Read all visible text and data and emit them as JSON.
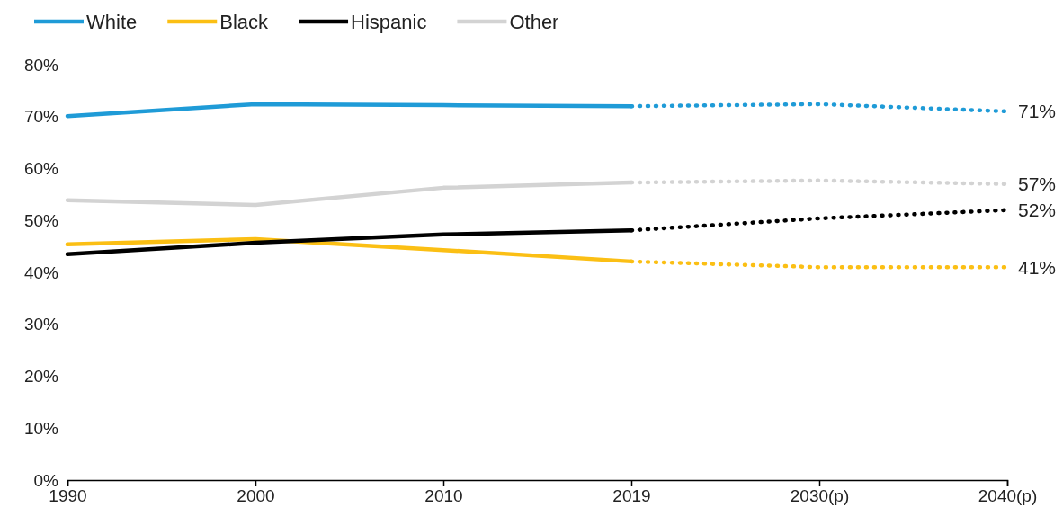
{
  "chart_data": {
    "type": "line",
    "categories": [
      "1990",
      "2000",
      "2010",
      "2019",
      "2030(p)",
      "2040(p)"
    ],
    "series": [
      {
        "name": "White",
        "color": "#1f9bd7",
        "line_style": "solid",
        "values": [
          70.1,
          72.4,
          72.2,
          72.0,
          null,
          null
        ]
      },
      {
        "name": "Black",
        "color": "#fbbf14",
        "line_style": "solid",
        "values": [
          45.4,
          46.4,
          44.3,
          42.1,
          null,
          null
        ]
      },
      {
        "name": "Hispanic",
        "color": "#000000",
        "line_style": "solid",
        "values": [
          43.5,
          45.7,
          47.3,
          48.1,
          null,
          null
        ]
      },
      {
        "name": "Other",
        "color": "#d3d3d3",
        "line_style": "solid",
        "values": [
          53.9,
          53.0,
          56.3,
          57.3,
          null,
          null
        ]
      },
      {
        "color": "#1f9bd7",
        "line_style": "dotted",
        "values": [
          null,
          null,
          null,
          72.0,
          72.4,
          71
        ],
        "value_labels": [
          null,
          null,
          null,
          null,
          null,
          "71%"
        ]
      },
      {
        "color": "#fbbf14",
        "line_style": "dotted",
        "values": [
          null,
          null,
          null,
          42.1,
          41.0,
          41
        ],
        "value_labels": [
          null,
          null,
          null,
          null,
          null,
          "41%"
        ]
      },
      {
        "color": "#000000",
        "line_style": "dotted",
        "values": [
          null,
          null,
          null,
          48.1,
          50.4,
          52
        ],
        "value_labels": [
          null,
          null,
          null,
          null,
          null,
          "52%"
        ]
      },
      {
        "color": "#d3d3d3",
        "line_style": "dotted",
        "values": [
          null,
          null,
          null,
          57.3,
          57.7,
          57
        ],
        "value_labels": [
          null,
          null,
          null,
          null,
          null,
          "57%"
        ]
      }
    ],
    "ylim": [
      0,
      80
    ],
    "yticks": [
      {
        "value": 0,
        "label": "0%"
      },
      {
        "value": 10,
        "label": "10%"
      },
      {
        "value": 20,
        "label": "20%"
      },
      {
        "value": 30,
        "label": "30%"
      },
      {
        "value": 40,
        "label": "40%"
      },
      {
        "value": 50,
        "label": "50%"
      },
      {
        "value": 60,
        "label": "60%"
      },
      {
        "value": 70,
        "label": "70%"
      },
      {
        "value": 80,
        "label": "80%"
      }
    ],
    "grid": false,
    "legend": "top left",
    "marker": "none"
  }
}
